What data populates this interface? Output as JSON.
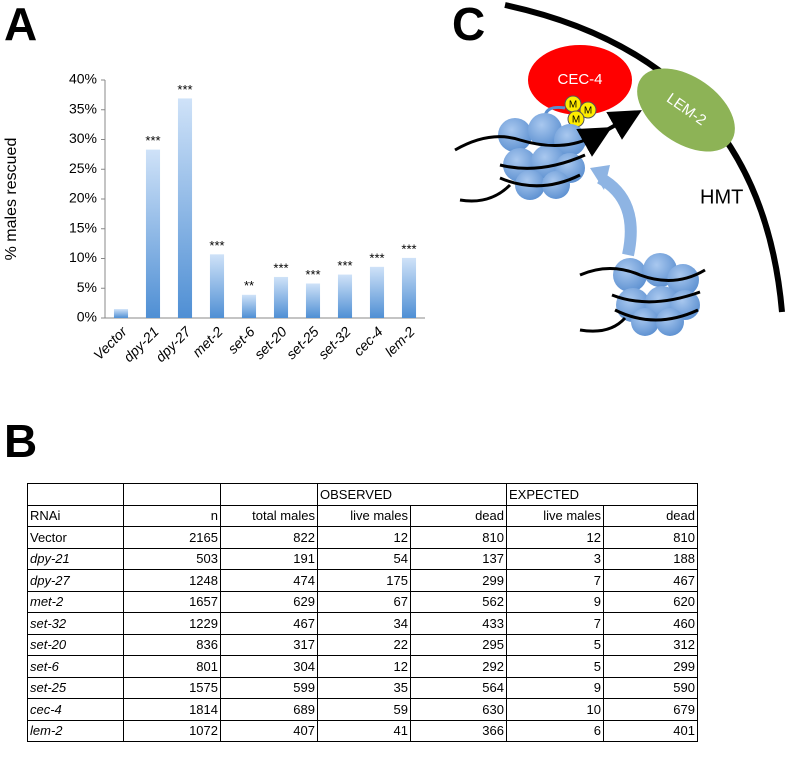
{
  "panels": [
    "A",
    "B",
    "C"
  ],
  "chart_data": {
    "type": "bar",
    "ylabel": "% males rescued",
    "categories": [
      "Vector",
      "dpy-21",
      "dpy-27",
      "met-2",
      "set-6",
      "set-20",
      "set-25",
      "set-32",
      "cec-4",
      "lem-2"
    ],
    "values": [
      1.5,
      28.3,
      36.9,
      10.7,
      3.9,
      6.9,
      5.8,
      7.3,
      8.6,
      10.1
    ],
    "significance": [
      null,
      "***",
      "***",
      "***",
      "**",
      "***",
      "***",
      "***",
      "***",
      "***"
    ],
    "color": "#5b9bd5",
    "ylim": [
      0,
      40
    ],
    "yticks": [
      {
        "value": 0,
        "label": "0%"
      },
      {
        "value": 5,
        "label": "5%"
      },
      {
        "value": 10,
        "label": "10%"
      },
      {
        "value": 15,
        "label": "15%"
      },
      {
        "value": 20,
        "label": "20%"
      },
      {
        "value": 25,
        "label": "25%"
      },
      {
        "value": 30,
        "label": "30%"
      },
      {
        "value": 35,
        "label": "35%"
      },
      {
        "value": 40,
        "label": "40%"
      }
    ],
    "grid": false
  },
  "table": {
    "groups": [
      {
        "label": "OBSERVED",
        "start": 3,
        "span": 2
      },
      {
        "label": "EXPECTED",
        "start": 5,
        "span": 2
      }
    ],
    "columns": [
      "RNAi",
      "n",
      "total males",
      "live males",
      "dead",
      "live  males",
      "dead"
    ],
    "rows": [
      [
        "Vector",
        2165,
        822,
        12,
        810,
        12,
        810
      ],
      [
        "dpy-21",
        503,
        191,
        54,
        137,
        3,
        188
      ],
      [
        "dpy-27",
        1248,
        474,
        175,
        299,
        7,
        467
      ],
      [
        "met-2",
        1657,
        629,
        67,
        562,
        9,
        620
      ],
      [
        "set-32",
        1229,
        467,
        34,
        433,
        7,
        460
      ],
      [
        "set-20",
        836,
        317,
        22,
        295,
        5,
        312
      ],
      [
        "set-6",
        801,
        304,
        12,
        292,
        5,
        299
      ],
      [
        "set-25",
        1575,
        599,
        35,
        564,
        9,
        590
      ],
      [
        "cec-4",
        1814,
        689,
        59,
        630,
        10,
        679
      ],
      [
        "lem-2",
        1072,
        407,
        41,
        366,
        6,
        401
      ]
    ]
  },
  "diagram": {
    "cec": "CEC-4",
    "lem": "LEM-2",
    "hmt": "HMT",
    "methyl": [
      "M",
      "M",
      "M"
    ]
  }
}
